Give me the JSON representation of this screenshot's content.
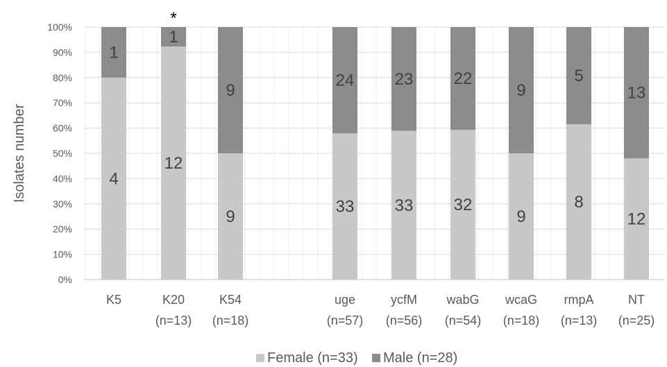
{
  "chart_data": {
    "type": "bar",
    "stacked": true,
    "percent_stacked": true,
    "ylabel": "Isolates number",
    "y_ticks": [
      "0%",
      "10%",
      "20%",
      "30%",
      "40%",
      "50%",
      "60%",
      "70%",
      "80%",
      "90%",
      "100%"
    ],
    "ylim": [
      0,
      100
    ],
    "grid": true,
    "legend_position": "bottom",
    "categories": [
      {
        "label": "K5",
        "n": "",
        "star": ""
      },
      {
        "label": "K20",
        "n": "(n=13)",
        "star": "*"
      },
      {
        "label": "K54",
        "n": "(n=18)",
        "star": ""
      },
      {
        "label": "uge",
        "n": "(n=57)",
        "star": ""
      },
      {
        "label": "ycfM",
        "n": "(n=56)",
        "star": ""
      },
      {
        "label": "wabG",
        "n": "(n=54)",
        "star": ""
      },
      {
        "label": "wcaG",
        "n": "(n=18)",
        "star": ""
      },
      {
        "label": "rmpA",
        "n": "(n=13)",
        "star": ""
      },
      {
        "label": "NT",
        "n": "(n=25)",
        "star": ""
      }
    ],
    "series": [
      {
        "name": "Female (n=33)",
        "color": "#c8c8c8",
        "values": [
          4,
          12,
          9,
          33,
          33,
          32,
          9,
          8,
          12
        ]
      },
      {
        "name": "Male (n=28)",
        "color": "#8c8c8c",
        "values": [
          1,
          1,
          9,
          24,
          23,
          22,
          9,
          5,
          13
        ]
      }
    ]
  }
}
